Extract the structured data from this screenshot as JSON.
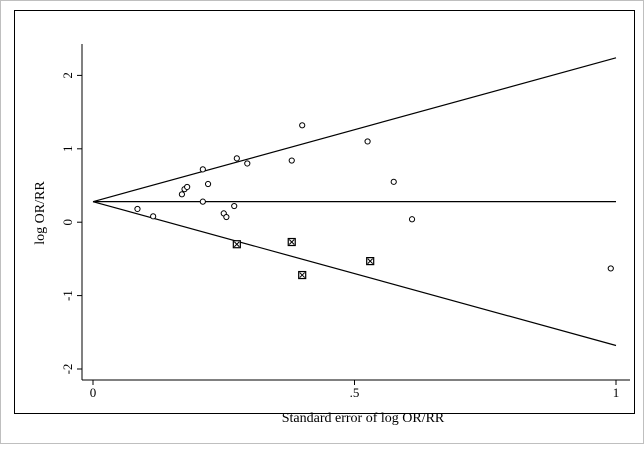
{
  "chart_data": {
    "type": "scatter",
    "title": "",
    "xlabel": "Standard error of log OR/RR",
    "ylabel": "log OR/RR",
    "xlim": [
      0,
      1
    ],
    "ylim": [
      -2.2,
      2.35
    ],
    "x_ticks": [
      0,
      0.5,
      1
    ],
    "x_tick_labels": [
      "0",
      ".5",
      "1"
    ],
    "y_ticks": [
      -2,
      -1,
      0,
      1,
      2
    ],
    "y_tick_labels": [
      "-2",
      "-1",
      "0",
      "1",
      "2"
    ],
    "grid": false,
    "pooled_estimate": 0.28,
    "pseudo_ci_z": 1.96,
    "series": [
      {
        "marker": "circle",
        "points": [
          {
            "x": 0.085,
            "y": 0.18
          },
          {
            "x": 0.115,
            "y": 0.08
          },
          {
            "x": 0.17,
            "y": 0.38
          },
          {
            "x": 0.175,
            "y": 0.45
          },
          {
            "x": 0.18,
            "y": 0.48
          },
          {
            "x": 0.21,
            "y": 0.72
          },
          {
            "x": 0.21,
            "y": 0.28
          },
          {
            "x": 0.22,
            "y": 0.52
          },
          {
            "x": 0.25,
            "y": 0.12
          },
          {
            "x": 0.255,
            "y": 0.07
          },
          {
            "x": 0.27,
            "y": 0.22
          },
          {
            "x": 0.275,
            "y": 0.87
          },
          {
            "x": 0.295,
            "y": 0.8
          },
          {
            "x": 0.38,
            "y": 0.84
          },
          {
            "x": 0.4,
            "y": 1.32
          },
          {
            "x": 0.525,
            "y": 1.1
          },
          {
            "x": 0.575,
            "y": 0.55
          },
          {
            "x": 0.61,
            "y": 0.04
          },
          {
            "x": 0.99,
            "y": -0.63
          }
        ]
      },
      {
        "marker": "boxed-x",
        "points": [
          {
            "x": 0.275,
            "y": -0.3
          },
          {
            "x": 0.38,
            "y": -0.27
          },
          {
            "x": 0.4,
            "y": -0.72
          },
          {
            "x": 0.53,
            "y": -0.53
          }
        ]
      }
    ]
  }
}
